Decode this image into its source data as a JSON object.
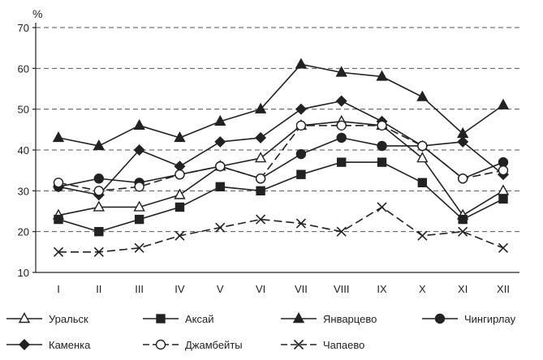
{
  "chart_data": {
    "type": "line",
    "ylabel": "%",
    "ylim": [
      10,
      70
    ],
    "yticks": [
      10,
      20,
      30,
      40,
      50,
      60,
      70
    ],
    "grid": true,
    "legend_position": "bottom",
    "categories": [
      "I",
      "II",
      "III",
      "IV",
      "V",
      "VI",
      "VII",
      "VIII",
      "IX",
      "X",
      "XI",
      "XII"
    ],
    "series": [
      {
        "name": "Уральск",
        "marker": "triangle-open",
        "dash": "solid",
        "values": [
          24,
          26,
          26,
          29,
          36,
          38,
          46,
          47,
          46,
          38,
          24,
          30
        ]
      },
      {
        "name": "Аксай",
        "marker": "square-filled",
        "dash": "solid",
        "values": [
          23,
          20,
          23,
          26,
          31,
          30,
          34,
          37,
          37,
          32,
          23,
          28
        ]
      },
      {
        "name": "Январцево",
        "marker": "triangle-filled",
        "dash": "solid",
        "values": [
          43,
          41,
          46,
          43,
          47,
          50,
          61,
          59,
          58,
          53,
          44,
          51
        ]
      },
      {
        "name": "Чингирлау",
        "marker": "circle-filled",
        "dash": "solid",
        "values": [
          31,
          33,
          32,
          34,
          36,
          33,
          39,
          43,
          41,
          41,
          33,
          37
        ]
      },
      {
        "name": "Каменка",
        "marker": "diamond-filled",
        "dash": "solid",
        "values": [
          31,
          29,
          40,
          36,
          42,
          43,
          50,
          52,
          47,
          41,
          42,
          34
        ]
      },
      {
        "name": "Джамбейты",
        "marker": "circle-open",
        "dash": "dashed",
        "values": [
          32,
          30,
          31,
          34,
          36,
          33,
          46,
          46,
          46,
          41,
          33,
          35
        ]
      },
      {
        "name": "Чапаево",
        "marker": "x",
        "dash": "dashed",
        "values": [
          15,
          15,
          16,
          19,
          21,
          23,
          22,
          20,
          26,
          19,
          20,
          16
        ]
      }
    ]
  },
  "colors": {
    "line": "#222222",
    "grid": "#555555"
  }
}
